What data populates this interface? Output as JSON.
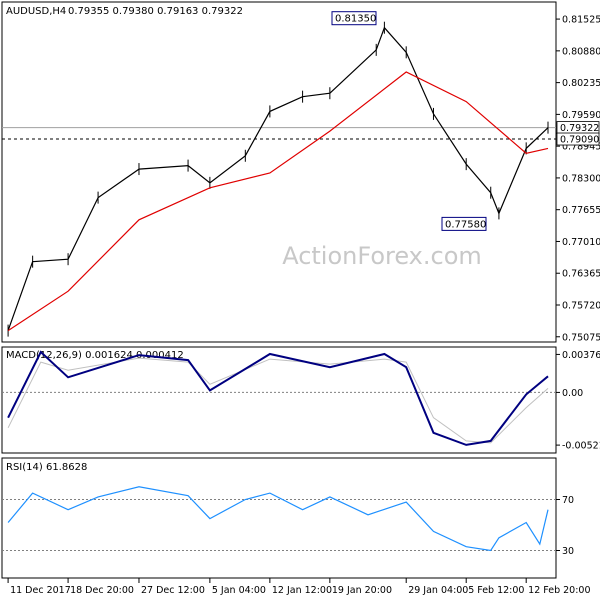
{
  "chart_data": [
    {
      "type": "candlestick",
      "title": "AUDUSD,H4",
      "ohlc": "0.79355 0.79380 0.79163 0.79322",
      "ylim": [
        0.7505,
        0.8175
      ],
      "y_ticks": [
        "0.81525",
        "0.80880",
        "0.80235",
        "0.79590",
        "0.78945",
        "0.78300",
        "0.77655",
        "0.77010",
        "0.76365",
        "0.75720",
        "0.75075"
      ],
      "x_ticks": [
        "11 Dec 2017",
        "18 Dec 20:00",
        "27 Dec 12:00",
        "5 Jan 04:00",
        "12 Jan 12:00",
        "19 Jan 20:00",
        "29 Jan 04:00",
        "5 Feb 12:00",
        "12 Feb 20:00"
      ],
      "watermark": "ActionForex.com",
      "price_series": {
        "x": [
          "11 Dec 2017",
          "14 Dec",
          "18 Dec 20:00",
          "22 Dec",
          "27 Dec 12:00",
          "2 Jan",
          "5 Jan 04:00",
          "9 Jan",
          "12 Jan 12:00",
          "16 Jan",
          "19 Jan 20:00",
          "25 Jan",
          "26 Jan",
          "29 Jan 04:00",
          "1 Feb",
          "5 Feb 12:00",
          "8 Feb",
          "9 Feb",
          "12 Feb 20:00",
          "15 Feb"
        ],
        "close": [
          0.752,
          0.766,
          0.7665,
          0.779,
          0.7848,
          0.7855,
          0.782,
          0.7875,
          0.7965,
          0.7995,
          0.8002,
          0.809,
          0.8135,
          0.8085,
          0.796,
          0.7858,
          0.78,
          0.7758,
          0.789,
          0.7932
        ]
      },
      "ma_series": {
        "x": [
          "11 Dec 2017",
          "18 Dec 20:00",
          "27 Dec 12:00",
          "5 Jan 04:00",
          "12 Jan 12:00",
          "19 Jan 20:00",
          "29 Jan 04:00",
          "5 Feb 12:00",
          "12 Feb 20:00",
          "15 Feb"
        ],
        "value": [
          0.752,
          0.76,
          0.7745,
          0.781,
          0.784,
          0.7925,
          0.8045,
          0.7985,
          0.788,
          0.789
        ]
      },
      "annotations": [
        {
          "label": "0.81350",
          "value": 0.8135
        },
        {
          "label": "0.77580",
          "value": 0.7758
        }
      ],
      "price_labels": [
        {
          "label": "0.79322",
          "value": 0.79322,
          "color": "#ffffff"
        },
        {
          "label": "0.79090",
          "value": 0.7909,
          "color": "#ffffff"
        }
      ],
      "reference_lines": [
        {
          "value": 0.7932,
          "style": "solid"
        },
        {
          "value": 0.7909,
          "style": "dashed"
        }
      ]
    },
    {
      "type": "line",
      "title": "MACD(12,26,9) 0.001624 0.000412",
      "ylim": [
        -0.0058,
        0.0042
      ],
      "y_ticks": [
        "0.003762",
        "0.00",
        "-0.005216"
      ],
      "series": [
        {
          "color": "#000080",
          "x": [
            "11 Dec 2017",
            "15 Dec",
            "18 Dec 20:00",
            "27 Dec 12:00",
            "2 Jan",
            "5 Jan 04:00",
            "12 Jan 12:00",
            "19 Jan 20:00",
            "26 Jan",
            "29 Jan 04:00",
            "1 Feb",
            "5 Feb 12:00",
            "8 Feb",
            "12 Feb 20:00",
            "15 Feb"
          ],
          "values": [
            -0.0025,
            0.004,
            0.0015,
            0.0037,
            0.0032,
            0.0002,
            0.0038,
            0.0025,
            0.0038,
            0.0025,
            -0.004,
            -0.0052,
            -0.0048,
            -0.0002,
            0.0016
          ]
        },
        {
          "color": "#c0c0c0",
          "x": [
            "11 Dec 2017",
            "15 Dec",
            "18 Dec 20:00",
            "27 Dec 12:00",
            "2 Jan",
            "5 Jan 04:00",
            "12 Jan 12:00",
            "19 Jan 20:00",
            "26 Jan",
            "29 Jan 04:00",
            "1 Feb",
            "5 Feb 12:00",
            "8 Feb",
            "12 Feb 20:00",
            "15 Feb"
          ],
          "values": [
            -0.0035,
            0.003,
            0.0022,
            0.0034,
            0.003,
            0.0008,
            0.0033,
            0.0028,
            0.0033,
            0.003,
            -0.0025,
            -0.0048,
            -0.005,
            -0.0015,
            0.0004
          ]
        }
      ]
    },
    {
      "type": "line",
      "title": "RSI(14) 61.8628",
      "ylim": [
        10,
        90
      ],
      "y_ticks": [
        "70",
        "30"
      ],
      "levels": [
        70,
        30
      ],
      "series": [
        {
          "color": "#1e90ff",
          "x": [
            "11 Dec 2017",
            "14 Dec",
            "18 Dec 20:00",
            "22 Dec",
            "27 Dec 12:00",
            "2 Jan",
            "5 Jan 04:00",
            "9 Jan",
            "12 Jan 12:00",
            "16 Jan",
            "19 Jan 20:00",
            "24 Jan",
            "29 Jan 04:00",
            "1 Feb",
            "5 Feb 12:00",
            "8 Feb",
            "9 Feb",
            "12 Feb 20:00",
            "14 Feb",
            "15 Feb"
          ],
          "values": [
            52,
            75,
            62,
            72,
            80,
            73,
            55,
            70,
            75,
            62,
            72,
            58,
            68,
            45,
            33,
            30,
            40,
            52,
            35,
            62
          ]
        }
      ]
    }
  ]
}
